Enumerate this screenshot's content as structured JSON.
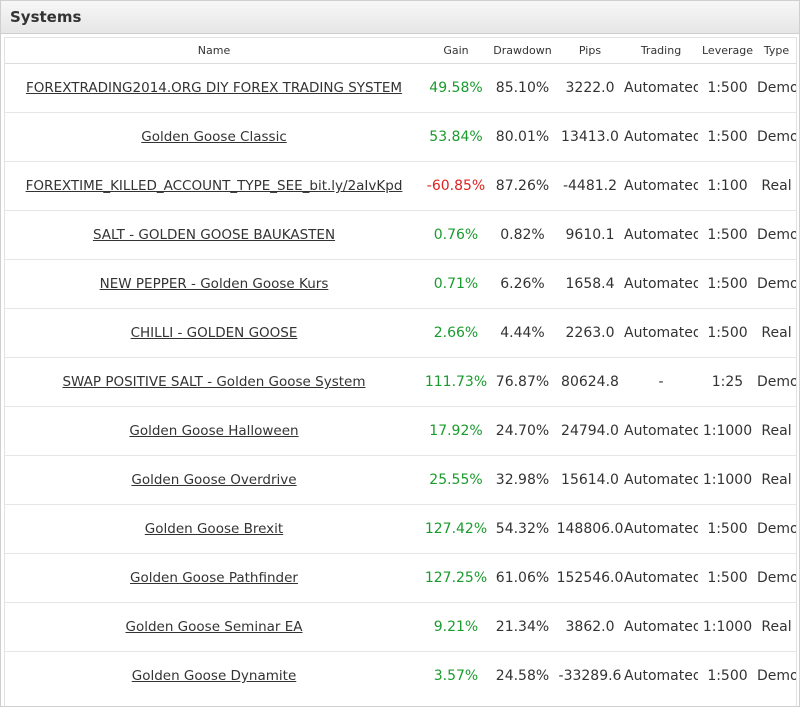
{
  "panel": {
    "title": "Systems"
  },
  "columns": {
    "name": "Name",
    "gain": "Gain",
    "drawdown": "Drawdown",
    "pips": "Pips",
    "trading": "Trading",
    "leverage": "Leverage",
    "type": "Type"
  },
  "colors": {
    "positive": "#1a9b2e",
    "negative": "#e02020"
  },
  "rows": [
    {
      "name": "FOREXTRADING2014.ORG DIY FOREX TRADING SYSTEM",
      "gain": "49.58%",
      "gain_sign": "pos",
      "drawdown": "85.10%",
      "pips": "3222.0",
      "trading": "Automated",
      "leverage": "1:500",
      "type": "Demo"
    },
    {
      "name": "Golden Goose Classic",
      "gain": "53.84%",
      "gain_sign": "pos",
      "drawdown": "80.01%",
      "pips": "13413.0",
      "trading": "Automated",
      "leverage": "1:500",
      "type": "Demo"
    },
    {
      "name": "FOREXTIME_KILLED_ACCOUNT_TYPE_SEE_bit.ly/2aIvKpd",
      "gain": "-60.85%",
      "gain_sign": "neg",
      "drawdown": "87.26%",
      "pips": "-4481.2",
      "trading": "Automated",
      "leverage": "1:100",
      "type": "Real"
    },
    {
      "name": "SALT - GOLDEN GOOSE BAUKASTEN",
      "gain": "0.76%",
      "gain_sign": "pos",
      "drawdown": "0.82%",
      "pips": "9610.1",
      "trading": "Automated",
      "leverage": "1:500",
      "type": "Demo"
    },
    {
      "name": "NEW PEPPER - Golden Goose Kurs",
      "gain": "0.71%",
      "gain_sign": "pos",
      "drawdown": "6.26%",
      "pips": "1658.4",
      "trading": "Automated",
      "leverage": "1:500",
      "type": "Demo"
    },
    {
      "name": "CHILLI - GOLDEN GOOSE",
      "gain": "2.66%",
      "gain_sign": "pos",
      "drawdown": "4.44%",
      "pips": "2263.0",
      "trading": "Automated",
      "leverage": "1:500",
      "type": "Real"
    },
    {
      "name": "SWAP POSITIVE SALT - Golden Goose System",
      "gain": "111.73%",
      "gain_sign": "pos",
      "drawdown": "76.87%",
      "pips": "80624.8",
      "trading": "-",
      "leverage": "1:25",
      "type": "Demo"
    },
    {
      "name": "Golden Goose Halloween",
      "gain": "17.92%",
      "gain_sign": "pos",
      "drawdown": "24.70%",
      "pips": "24794.0",
      "trading": "Automated",
      "leverage": "1:1000",
      "type": "Real"
    },
    {
      "name": "Golden Goose Overdrive",
      "gain": "25.55%",
      "gain_sign": "pos",
      "drawdown": "32.98%",
      "pips": "15614.0",
      "trading": "Automated",
      "leverage": "1:1000",
      "type": "Real"
    },
    {
      "name": "Golden Goose Brexit",
      "gain": "127.42%",
      "gain_sign": "pos",
      "drawdown": "54.32%",
      "pips": "148806.0",
      "trading": "Automated",
      "leverage": "1:500",
      "type": "Demo"
    },
    {
      "name": "Golden Goose Pathfinder",
      "gain": "127.25%",
      "gain_sign": "pos",
      "drawdown": "61.06%",
      "pips": "152546.0",
      "trading": "Automated",
      "leverage": "1:500",
      "type": "Demo"
    },
    {
      "name": "Golden Goose Seminar EA",
      "gain": "9.21%",
      "gain_sign": "pos",
      "drawdown": "21.34%",
      "pips": "3862.0",
      "trading": "Automated",
      "leverage": "1:1000",
      "type": "Real"
    },
    {
      "name": "Golden Goose Dynamite",
      "gain": "3.57%",
      "gain_sign": "pos",
      "drawdown": "24.58%",
      "pips": "-33289.6",
      "trading": "Automated",
      "leverage": "1:500",
      "type": "Demo"
    }
  ]
}
